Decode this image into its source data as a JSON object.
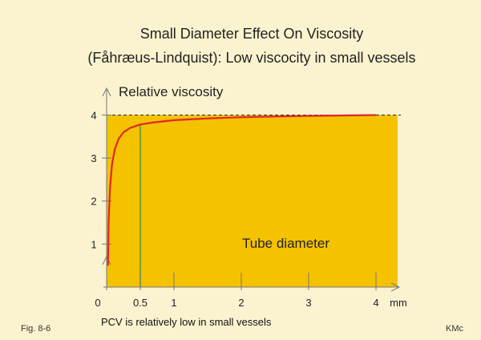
{
  "slide": {
    "title_line1": "Small Diameter Effect On Viscosity",
    "title_line2": "(Fåhræus-Lindquist): Low viscocity in small vessels",
    "fig_label": "Fig. 8-6",
    "author": "KMc",
    "caption": "PCV is  relatively  low  in small vessels"
  },
  "colors": {
    "background": "#fbf3cf",
    "plot_fill": "#f5c200",
    "curve": "#e0262b",
    "marker_line": "#4a9a3a",
    "axis": "#777777"
  },
  "chart_data": {
    "type": "line",
    "ylabel": "Relative viscosity",
    "annotation": "Tube diameter",
    "x_unit": "mm",
    "xlim": [
      0,
      4.25
    ],
    "ylim": [
      0,
      4.4
    ],
    "x_ticks": [
      {
        "value": 0,
        "label": "0"
      },
      {
        "value": 0.5,
        "label": "0.5"
      },
      {
        "value": 1,
        "label": "1"
      },
      {
        "value": 2,
        "label": "2"
      },
      {
        "value": 3,
        "label": "3"
      },
      {
        "value": 4,
        "label": "4"
      }
    ],
    "y_ticks": [
      {
        "value": 1,
        "label": "1"
      },
      {
        "value": 2,
        "label": "2"
      },
      {
        "value": 3,
        "label": "3"
      },
      {
        "value": 4,
        "label": "4"
      }
    ],
    "asymptote": 4,
    "marker_x": 0.5,
    "series": [
      {
        "x": [
          0.02,
          0.03,
          0.05,
          0.08,
          0.12,
          0.18,
          0.25,
          0.35,
          0.5,
          0.7,
          1,
          1.5,
          2,
          3,
          4
        ],
        "y": [
          0.5,
          1.5,
          2.3,
          2.85,
          3.2,
          3.45,
          3.6,
          3.7,
          3.78,
          3.83,
          3.88,
          3.92,
          3.95,
          3.98,
          4.0
        ]
      }
    ]
  }
}
